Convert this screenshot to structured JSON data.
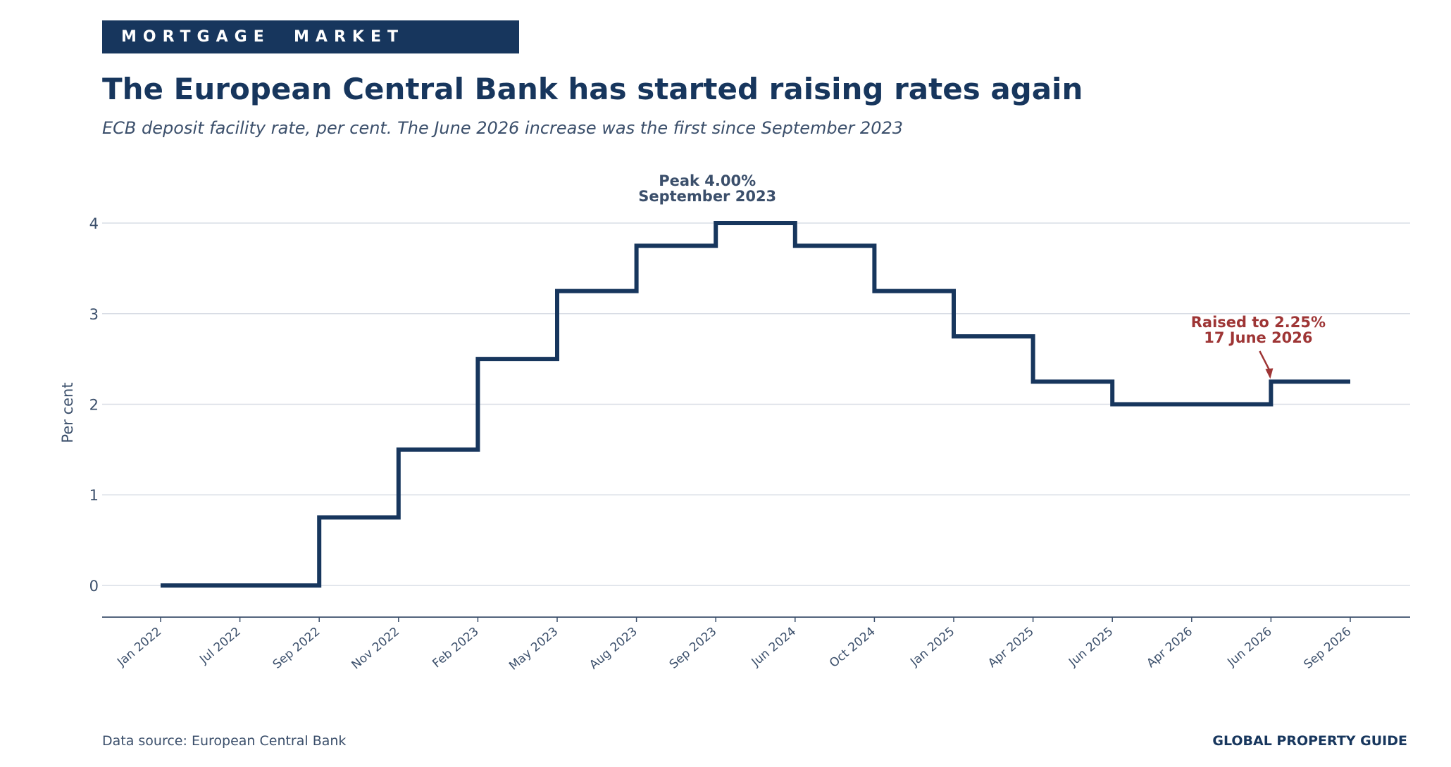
{
  "banner": "MORTGAGE  MARKET",
  "title": "The European Central Bank has started raising rates again",
  "subtitle": "ECB deposit facility rate, per cent. The June 2026 increase was the first since September 2023",
  "footer": {
    "source": "Data source: European Central Bank",
    "brand": "GLOBAL PROPERTY GUIDE"
  },
  "colors": {
    "line": "#17365d",
    "accent": "#9e3535",
    "text": "#3b4f6b",
    "grid": "#d9dde5"
  },
  "chart_data": {
    "type": "line",
    "step": "post",
    "ylabel": "Per cent",
    "xlabel": "",
    "ylim": [
      -0.35,
      4.35
    ],
    "yticks": [
      0,
      1,
      2,
      3,
      4
    ],
    "grid": true,
    "categories": [
      "Jan 2022",
      "Jul 2022",
      "Sep 2022",
      "Nov 2022",
      "Feb 2023",
      "May 2023",
      "Aug 2023",
      "Sep 2023",
      "Jun 2024",
      "Oct 2024",
      "Jan 2025",
      "Apr 2025",
      "Jun 2025",
      "Apr 2026",
      "Jun 2026",
      "Sep 2026"
    ],
    "values": [
      0,
      0,
      0.75,
      1.5,
      2.5,
      3.25,
      3.75,
      4.0,
      3.75,
      3.25,
      2.75,
      2.25,
      2.0,
      2.0,
      2.25,
      2.25
    ],
    "annotations": [
      {
        "lines": [
          "Peak 4.00%",
          "September 2023"
        ],
        "category": "Sep 2023",
        "style": "peak"
      },
      {
        "lines": [
          "Raised to 2.25%",
          "17 June 2026"
        ],
        "category": "Jun 2026",
        "value": 2.25,
        "style": "accent"
      }
    ]
  }
}
